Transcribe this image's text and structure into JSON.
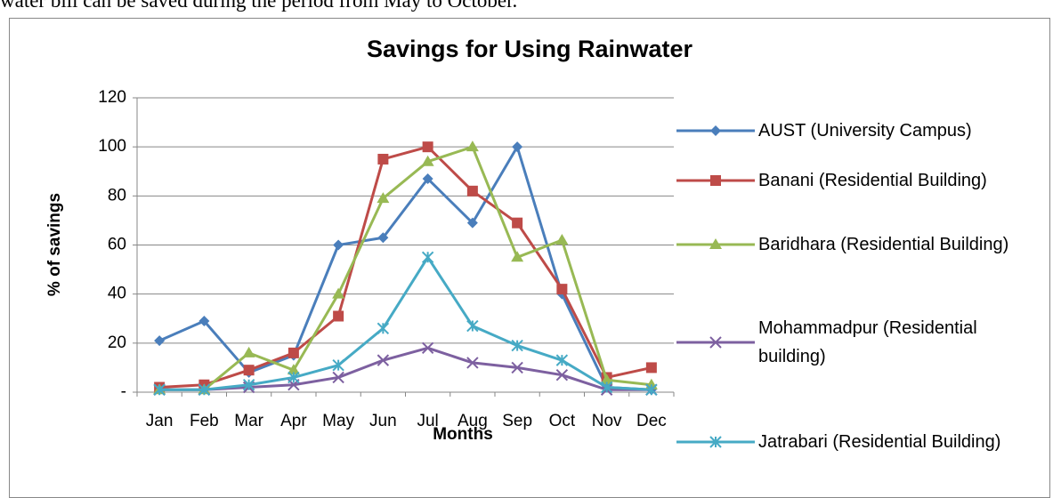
{
  "document_text": "water bill can be saved during the period from May to October.",
  "chart_data": {
    "type": "line",
    "title": "Savings for Using Rainwater",
    "x_label": "Months",
    "y_label": "% of savings",
    "categories": [
      "Jan",
      "Feb",
      "Mar",
      "Apr",
      "May",
      "Jun",
      "Jul",
      "Aug",
      "Sep",
      "Oct",
      "Nov",
      "Dec"
    ],
    "series": [
      {
        "name": "AUST (University Campus)",
        "color": "#4a7ebb",
        "marker": "diamond",
        "values": [
          21,
          29,
          8,
          15,
          60,
          63,
          87,
          69,
          100,
          40,
          2,
          1
        ]
      },
      {
        "name": "Banani (Residential Building)",
        "color": "#be4b48",
        "marker": "square",
        "values": [
          2,
          3,
          9,
          16,
          31,
          95,
          100,
          82,
          69,
          42,
          6,
          10
        ]
      },
      {
        "name": "Baridhara (Residential Building)",
        "color": "#98b954",
        "marker": "triangle",
        "values": [
          1,
          1,
          16,
          9,
          40,
          79,
          94,
          100,
          55,
          62,
          5,
          3
        ]
      },
      {
        "name": "Mohammadpur (Residential building)",
        "color": "#7d60a0",
        "marker": "x",
        "values": [
          1,
          1,
          2,
          3,
          6,
          13,
          18,
          12,
          10,
          7,
          1,
          1
        ]
      },
      {
        "name": "Jatrabari (Residential Building)",
        "color": "#46aac5",
        "marker": "star",
        "values": [
          1,
          1,
          3,
          6,
          11,
          26,
          55,
          27,
          19,
          13,
          2,
          1
        ]
      }
    ],
    "ylim": [
      0,
      120
    ],
    "yticks": [
      {
        "value": 0,
        "label": "-"
      },
      20,
      40,
      60,
      80,
      100,
      120
    ],
    "grid": true,
    "legend": "right"
  }
}
